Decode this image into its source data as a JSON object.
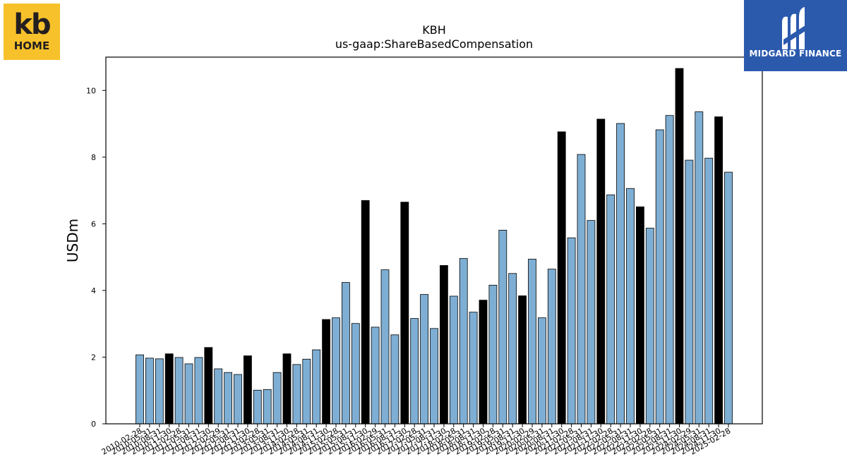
{
  "chart_data": {
    "type": "bar",
    "title": "KBH",
    "subtitle": "us-gaap:ShareBasedCompensation",
    "xlabel": "",
    "ylabel": "USDm",
    "ylim": [
      0,
      11
    ],
    "yticks": [
      0,
      2,
      4,
      6,
      8,
      10
    ],
    "legend": "none",
    "grid": false,
    "colors": {
      "regular": "#7eaed3",
      "highlight": "#000000",
      "edge": "#000000"
    },
    "categories": [
      "2010-02-28",
      "2010-05-31",
      "2010-08-31",
      "2010-11-30",
      "2011-02-28",
      "2011-05-31",
      "2011-08-31",
      "2011-11-30",
      "2012-02-29",
      "2012-05-31",
      "2012-08-31",
      "2012-11-30",
      "2013-02-28",
      "2013-05-31",
      "2013-08-31",
      "2013-11-30",
      "2014-02-28",
      "2014-05-31",
      "2014-08-31",
      "2014-11-30",
      "2015-02-28",
      "2015-05-31",
      "2015-08-31",
      "2015-11-30",
      "2016-02-29",
      "2016-05-31",
      "2016-08-31",
      "2016-11-30",
      "2017-02-28",
      "2017-05-31",
      "2017-08-31",
      "2017-11-30",
      "2018-02-28",
      "2018-05-31",
      "2018-08-31",
      "2018-11-30",
      "2019-02-28",
      "2019-05-31",
      "2019-08-31",
      "2019-11-30",
      "2020-02-29",
      "2020-05-31",
      "2020-08-31",
      "2020-11-30",
      "2021-02-28",
      "2021-05-31",
      "2021-08-31",
      "2021-11-30",
      "2022-02-28",
      "2022-05-31",
      "2022-08-31",
      "2022-11-30",
      "2023-02-28",
      "2023-05-31",
      "2023-08-31",
      "2023-11-30",
      "2024-02-29",
      "2024-05-31",
      "2024-08-31",
      "2024-11-30",
      "2025-02-28"
    ],
    "tick_labels": [
      "2010-02-28",
      "2010-05-31",
      "2010-08-31",
      "2010-11-30",
      "2011-02-28",
      "2011-05-31",
      "2011-08-31",
      "2011-11-30",
      "2012-02-29",
      "2012-05-31",
      "2012-08-31",
      "2012-11-30",
      "2013-02-28",
      "2013-05-31",
      "2013-08-31",
      "2013-11-30",
      "2014-02-28",
      "2014-05-31",
      "2014-08-31",
      "2014-11-30",
      "2015-02-28",
      "2015-05-31",
      "2015-08-31",
      "2015-11-30",
      "2016-02-29",
      "2016-05-31",
      "2016-08-31",
      "2016-11-30",
      "2017-02-28",
      "2017-05-31",
      "2017-08-31",
      "2017-11-30",
      "2018-02-28",
      "2018-05-31",
      "2018-08-31",
      "2018-11-30",
      "2019-02-28",
      "2019-05-31",
      "2019-08-31",
      "2019-11-30",
      "2020-02-29",
      "2020-05-31",
      "2020-08-31",
      "2020-11-30",
      "2021-02-28",
      "2021-05-31",
      "2021-08-31",
      "2021-11-30",
      "2022-02-28",
      "2022-05-31",
      "2022-08-31",
      "2022-11-30",
      "2023-02-28",
      "2023-05-31",
      "2023-08-31",
      "2023-11-30",
      "2024-02-29",
      "2024-05-31",
      "2024-08-31",
      "2024-11-30",
      "2025-02-28"
    ],
    "values": [
      2.07,
      1.97,
      1.95,
      2.1,
      1.99,
      1.8,
      1.99,
      2.29,
      1.65,
      1.54,
      1.48,
      2.04,
      1.01,
      1.03,
      1.54,
      2.1,
      1.78,
      1.94,
      2.22,
      3.13,
      3.18,
      4.24,
      3.01,
      6.7,
      2.9,
      4.62,
      2.67,
      6.65,
      3.16,
      3.88,
      2.86,
      4.75,
      3.83,
      4.96,
      3.35,
      3.71,
      4.16,
      5.81,
      4.51,
      3.84,
      4.94,
      3.18,
      4.64,
      8.76,
      5.58,
      8.08,
      6.1,
      9.14,
      6.87,
      9.01,
      7.06,
      6.51,
      5.87,
      8.82,
      9.25,
      10.66,
      7.91,
      9.36,
      7.97,
      9.21,
      7.55
    ],
    "highlight": [
      false,
      false,
      false,
      true,
      false,
      false,
      false,
      true,
      false,
      false,
      false,
      true,
      false,
      false,
      false,
      true,
      false,
      false,
      false,
      true,
      false,
      false,
      false,
      true,
      false,
      false,
      false,
      true,
      false,
      false,
      false,
      true,
      false,
      false,
      false,
      true,
      false,
      false,
      false,
      true,
      false,
      false,
      false,
      true,
      false,
      false,
      false,
      true,
      false,
      false,
      false,
      true,
      false,
      false,
      false,
      true,
      false,
      false,
      false,
      true,
      false
    ]
  },
  "logos": {
    "left": {
      "line1": "kb",
      "line2": "HOME",
      "bg": "#f7c12b"
    },
    "right": {
      "name": "MIDGARD FINANCE",
      "bg": "#2b5aad",
      "icon": "midgard-m-icon"
    }
  }
}
